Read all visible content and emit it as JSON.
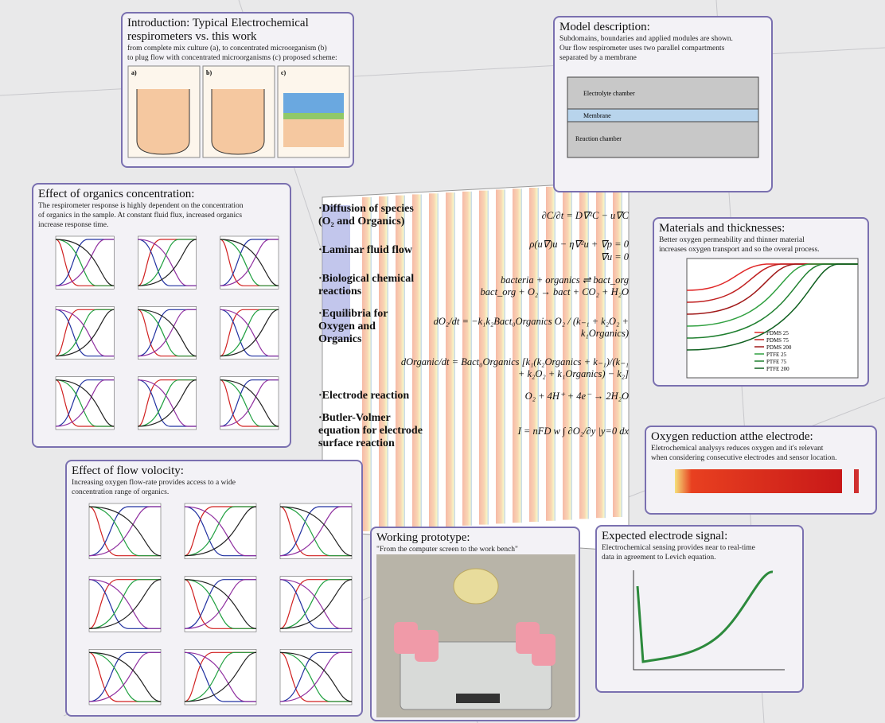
{
  "intro": {
    "title": "Introduction: Typical Electrochemical respirometers vs. this work",
    "text": [
      "from complete mix culture (a), to concentrated microorganism (b)",
      "to plug flow with concentrated microorganisms (c) proposed scheme:"
    ],
    "panels": [
      "a)",
      "b)",
      "c)"
    ]
  },
  "model": {
    "title": "Model description:",
    "text": [
      "Subdomains, boundaries and applied modules are shown.",
      "Our flow respirometer uses two parallel compartments",
      "separated by a membrane"
    ],
    "regions": [
      "Electrolyte chamber",
      "Membrane",
      "Reaction chamber"
    ]
  },
  "organics": {
    "title": "Effect of organics concentration:",
    "text": [
      "The respirometer response is highly dependent on the concentration",
      "of organics in the sample. At constant fluid flux, increased organics",
      "increase response time."
    ]
  },
  "materials": {
    "title": "Materials and thicknesses:",
    "text": [
      "Better oxygen permeability and thinner material",
      "increases oxygen transport and so the overal process."
    ],
    "legend": [
      "PDMS 25",
      "PDMS 75",
      "PDMS 200",
      "PTFE 25",
      "PTFE 75",
      "PTFE 200"
    ]
  },
  "oxygen": {
    "title": "Oxygen reduction atthe electrode:",
    "text": [
      "Eletrochemical analysys reduces oxygen and it's relevant",
      "when considering consecutive electrodes and sensor location."
    ]
  },
  "flow": {
    "title": "Effect of flow volocity:",
    "text": [
      "Increasing oxygen flow-rate provides access to a wide",
      "concentration range of organics."
    ]
  },
  "prototype": {
    "title": "Working prototype:",
    "text": "\"From the computer screen to the work bench\""
  },
  "signal": {
    "title": "Expected electrode signal:",
    "text": [
      "Electrochemical sensing provides near to real-time",
      "data in agreement to Levich equation."
    ]
  },
  "equations": [
    {
      "label": "·Diffusion of species (O₂ and Organics)",
      "formula": [
        "∂C/∂t = D∇²C − u∇C"
      ]
    },
    {
      "label": "·Laminar fluid flow",
      "formula": [
        "ρ(u∇)u − η∇²u + ∇p = 0",
        "∇u = 0"
      ]
    },
    {
      "label": "·Biological chemical reactions",
      "formula": [
        "bacteria + organics ⇌ bact_org",
        "bact_org + O₂ → bact + CO₂ + H₂O"
      ]
    },
    {
      "label": "·Equilibria for Oxygen and Organics",
      "formula": [
        "dO₂/dt = −k₁k₂Bact₀Organics O₂ / (k₋₁ + k₂O₂ + k₁Organics)"
      ]
    },
    {
      "label": "",
      "formula": [
        "dOrganic/dt = Bact₀Organics [k₁(k₂Organics + k₋₁)/(k₋₁ + k₂O₂ + k₁Organics) − k₂]"
      ]
    },
    {
      "label": "·Electrode reaction",
      "formula": [
        "O₂ + 4H⁺ + 4e⁻ → 2H₂O"
      ]
    },
    {
      "label": "·Butler-Volmer equation for electrode surface reaction",
      "formula": [
        "I = nFD w ∫ ∂O₂/∂y |y=0 dx"
      ]
    }
  ]
}
